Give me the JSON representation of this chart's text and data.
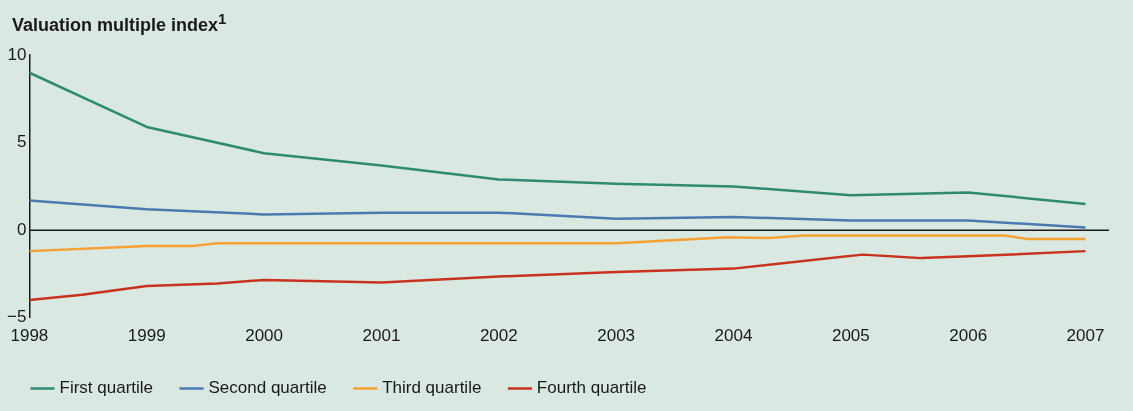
{
  "chart_data": {
    "type": "line",
    "title": "Valuation multiple index$^{1}$",
    "xlim": [
      1998,
      2007.2
    ],
    "xticks": [
      1998,
      1999,
      2000,
      2001,
      2002,
      2003,
      2004,
      2005,
      2006,
      2007
    ],
    "ylim": [
      -5,
      10
    ],
    "yticks": [
      -5,
      0,
      5,
      10
    ],
    "grid": false,
    "legend": "bottom",
    "marker": "none",
    "line_style": "solid",
    "ref_lines": [
      {
        "axis": "y",
        "value": 0,
        "color": "#1a1a1a"
      }
    ],
    "series": [
      {
        "name": "First quartile",
        "color": "#2e8b6e",
        "x": [
          1998,
          1999,
          2000,
          2001,
          2002,
          2003,
          2004,
          2005,
          2006,
          2007
        ],
        "values": [
          9.0,
          5.9,
          4.4,
          3.7,
          2.9,
          2.65,
          2.5,
          2.0,
          2.15,
          1.5
        ]
      },
      {
        "name": "Second quartile",
        "color": "#4a7ab0",
        "x": [
          1998,
          1999,
          2000,
          2001,
          2002,
          2003,
          2004,
          2005,
          2006,
          2007
        ],
        "values": [
          1.7,
          1.2,
          0.9,
          1.0,
          1.0,
          0.65,
          0.75,
          0.55,
          0.55,
          0.15
        ]
      },
      {
        "name": "Third quartile",
        "color": "#f5a030",
        "x": [
          1998,
          1999,
          1999.4,
          1999.6,
          2003,
          2003.95,
          2004.3,
          2004.6,
          2006.3,
          2006.5,
          2007
        ],
        "values": [
          -1.2,
          -0.9,
          -0.9,
          -0.75,
          -0.75,
          -0.4,
          -0.45,
          -0.3,
          -0.3,
          -0.5,
          -0.5
        ]
      },
      {
        "name": "Fourth quartile",
        "color": "#c8321e",
        "x": [
          1998,
          1998.45,
          1999,
          1999.6,
          2000,
          2001,
          2002,
          2003,
          2004,
          2005.1,
          2005.6,
          2006,
          2007
        ],
        "values": [
          -4.0,
          -3.7,
          -3.2,
          -3.05,
          -2.85,
          -3.0,
          -2.65,
          -2.4,
          -2.2,
          -1.4,
          -1.6,
          -1.5,
          -1.2
        ]
      }
    ]
  }
}
